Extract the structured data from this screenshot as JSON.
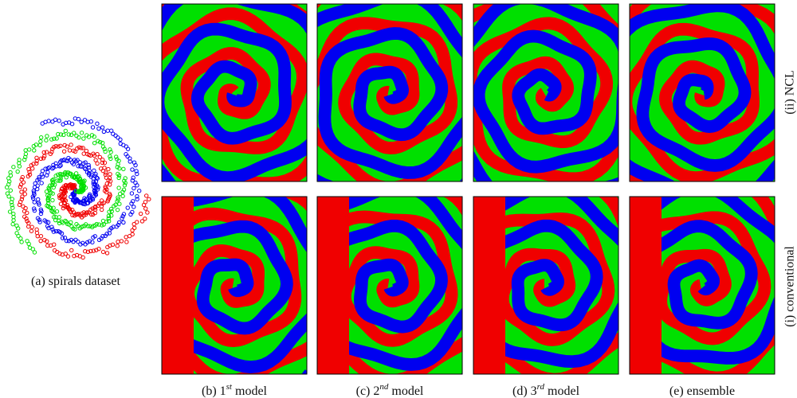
{
  "figure": {
    "dataset_caption": "(a) spirals dataset",
    "panel_captions": [
      {
        "prefix": "(b) 1",
        "sup": "st",
        "suffix": "model"
      },
      {
        "prefix": "(c) 2",
        "sup": "nd",
        "suffix": "model"
      },
      {
        "prefix": "(d) 3",
        "sup": "rd",
        "suffix": "model"
      },
      {
        "prefix": "(e) ensemble"
      }
    ],
    "row_labels": [
      "(ii) NCL",
      "(i) conventional"
    ]
  }
}
